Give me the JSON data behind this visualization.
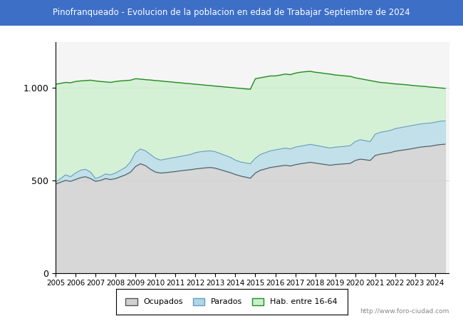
{
  "title": "Pinofranqueado - Evolucion de la poblacion en edad de Trabajar Septiembre de 2024",
  "title_bg": "#3d6fc7",
  "title_color": "#ffffff",
  "xlabel": "",
  "ylabel": "",
  "ylim": [
    0,
    1250
  ],
  "yticks": [
    0,
    500,
    1000
  ],
  "ytick_labels": [
    "0",
    "500",
    "1.000"
  ],
  "color_ocupados": "#808080",
  "color_parados": "#add8e6",
  "color_hab": "#90ee90",
  "line_ocupados": "#555555",
  "line_parados": "#6699cc",
  "line_hab": "#228B22",
  "watermark": "http://www.foro-ciudad.com",
  "years": [
    2005,
    2005.25,
    2005.5,
    2005.75,
    2006,
    2006.25,
    2006.5,
    2006.75,
    2007,
    2007.25,
    2007.5,
    2007.75,
    2008,
    2008.25,
    2008.5,
    2008.75,
    2009,
    2009.25,
    2009.5,
    2009.75,
    2010,
    2010.25,
    2010.5,
    2010.75,
    2011,
    2011.25,
    2011.5,
    2011.75,
    2012,
    2012.25,
    2012.5,
    2012.75,
    2013,
    2013.25,
    2013.5,
    2013.75,
    2014,
    2014.25,
    2014.5,
    2014.75,
    2015,
    2015.25,
    2015.5,
    2015.75,
    2016,
    2016.25,
    2016.5,
    2016.75,
    2017,
    2017.25,
    2017.5,
    2017.75,
    2018,
    2018.25,
    2018.5,
    2018.75,
    2019,
    2019.25,
    2019.5,
    2019.75,
    2020,
    2020.25,
    2020.5,
    2020.75,
    2021,
    2021.25,
    2021.5,
    2021.75,
    2022,
    2022.25,
    2022.5,
    2022.75,
    2023,
    2023.25,
    2023.5,
    2023.75,
    2024,
    2024.25,
    2024.5
  ],
  "hab": [
    1020,
    1025,
    1030,
    1028,
    1035,
    1038,
    1040,
    1042,
    1038,
    1035,
    1033,
    1030,
    1035,
    1038,
    1040,
    1042,
    1050,
    1048,
    1045,
    1043,
    1040,
    1038,
    1035,
    1033,
    1030,
    1028,
    1025,
    1023,
    1020,
    1018,
    1015,
    1013,
    1010,
    1008,
    1005,
    1003,
    1000,
    998,
    995,
    993,
    1050,
    1055,
    1060,
    1065,
    1065,
    1070,
    1075,
    1072,
    1080,
    1085,
    1088,
    1090,
    1085,
    1082,
    1078,
    1075,
    1070,
    1068,
    1065,
    1063,
    1055,
    1050,
    1045,
    1040,
    1035,
    1030,
    1028,
    1025,
    1022,
    1020,
    1018,
    1015,
    1012,
    1010,
    1008,
    1005,
    1003,
    1000,
    998
  ],
  "parados": [
    490,
    510,
    530,
    520,
    540,
    555,
    560,
    545,
    510,
    520,
    535,
    530,
    540,
    555,
    570,
    600,
    650,
    670,
    660,
    640,
    620,
    610,
    615,
    620,
    625,
    630,
    635,
    640,
    650,
    655,
    658,
    660,
    655,
    645,
    635,
    625,
    610,
    600,
    595,
    590,
    620,
    640,
    650,
    660,
    665,
    670,
    675,
    670,
    680,
    685,
    690,
    695,
    690,
    685,
    680,
    675,
    680,
    682,
    685,
    688,
    710,
    720,
    715,
    710,
    750,
    760,
    765,
    770,
    780,
    785,
    790,
    795,
    800,
    805,
    808,
    810,
    815,
    820,
    822
  ],
  "ocupados": [
    480,
    490,
    500,
    495,
    505,
    515,
    520,
    510,
    495,
    500,
    510,
    505,
    510,
    520,
    530,
    545,
    575,
    590,
    580,
    560,
    545,
    540,
    542,
    545,
    548,
    552,
    555,
    558,
    562,
    565,
    568,
    570,
    566,
    558,
    550,
    542,
    532,
    524,
    518,
    512,
    540,
    555,
    562,
    570,
    574,
    578,
    582,
    578,
    585,
    590,
    594,
    598,
    594,
    590,
    586,
    582,
    586,
    588,
    590,
    592,
    608,
    615,
    612,
    608,
    635,
    642,
    646,
    650,
    658,
    662,
    666,
    670,
    675,
    680,
    683,
    685,
    690,
    694,
    696
  ]
}
